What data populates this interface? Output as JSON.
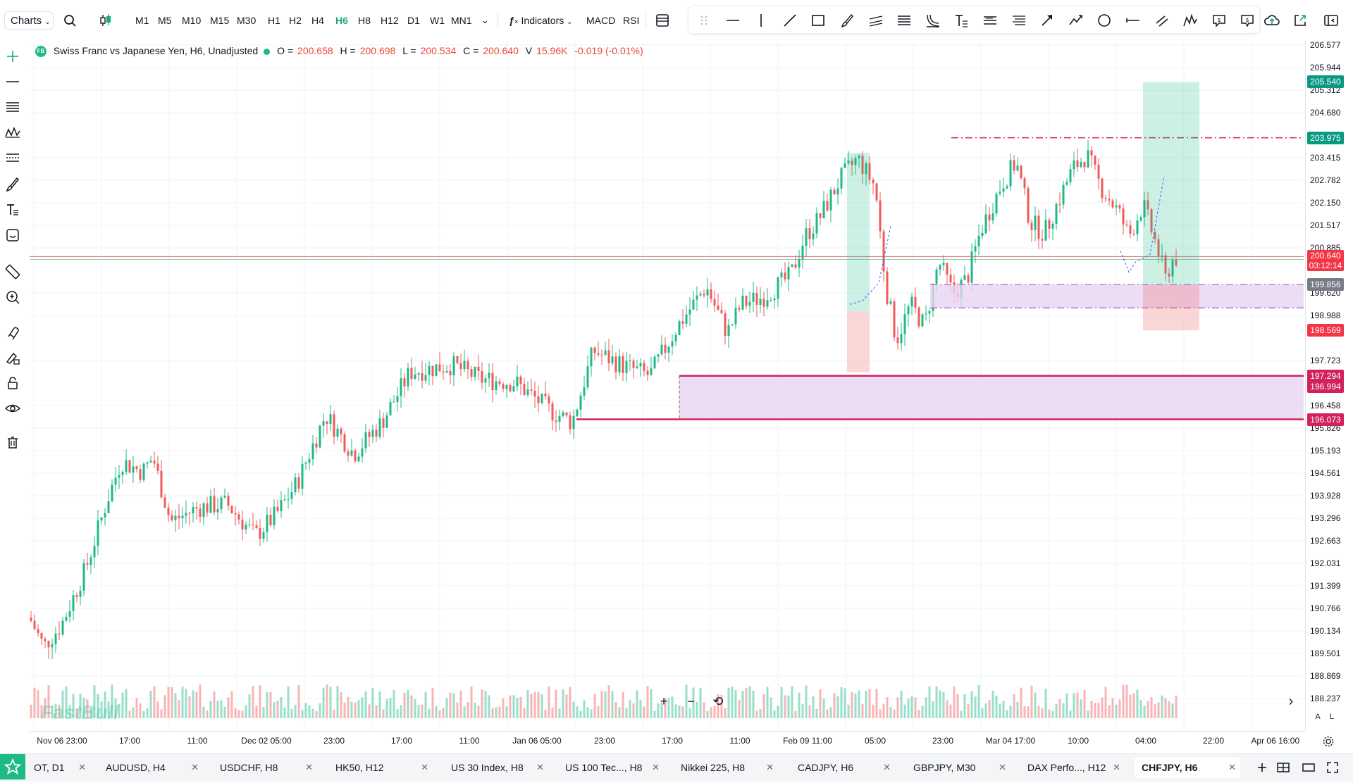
{
  "toolbar": {
    "charts_label": "Charts",
    "timeframes": [
      "M1",
      "M5",
      "M10",
      "M15",
      "M30",
      "H1",
      "H2",
      "H4",
      "H6",
      "H8",
      "H12",
      "D1",
      "W1",
      "MN1"
    ],
    "active_timeframe": "H6",
    "indicators_label": "Indicators",
    "macd_label": "MACD",
    "rsi_label": "RSI"
  },
  "drawing_tools": [
    "drag-handle-icon",
    "horizontal-line-icon",
    "vertical-line-icon",
    "trend-line-icon",
    "rectangle-icon",
    "brush-icon",
    "parallel-channel-icon",
    "fib-retracement-icon",
    "fib-fan-icon",
    "text-tool-icon",
    "pitchfork-icon",
    "gann-icon",
    "arrow-icon",
    "path-icon",
    "circle-icon",
    "ray-icon",
    "parallel-lines-icon",
    "pattern-icon",
    "price-note-icon",
    "price-label-icon"
  ],
  "legend": {
    "badge": "FB",
    "symbol_title": "Swiss Franc vs Japanese Yen, H6, Unadjusted",
    "o_label": "O =",
    "o_value": "200.658",
    "h_label": "H =",
    "h_value": "200.698",
    "l_label": "L =",
    "l_value": "200.534",
    "c_label": "C =",
    "c_value": "200.640",
    "v_label": "V",
    "v_value": "15.96K",
    "change": "-0.019 (-0.01%)"
  },
  "watermark": "FastBull",
  "price_axis": {
    "labels": [
      "206.577",
      "205.944",
      "205.312",
      "204.680",
      "203.415",
      "202.782",
      "202.150",
      "201.517",
      "200.885",
      "199.620",
      "198.988",
      "197.723",
      "196.458",
      "195.826",
      "195.193",
      "194.561",
      "193.928",
      "193.296",
      "192.663",
      "192.031",
      "191.399",
      "190.766",
      "190.134",
      "189.501",
      "188.869",
      "188.237"
    ],
    "tags": [
      {
        "text": "205.540",
        "color": "#089981"
      },
      {
        "text": "203.975",
        "color": "#089981"
      },
      {
        "text": "200.640",
        "sub": "03:12:14",
        "color": "#f23645"
      },
      {
        "text": "199.856",
        "color": "#787b86"
      },
      {
        "text": "198.569",
        "color": "#f23645"
      },
      {
        "text": "197.294",
        "color": "#d1225b"
      },
      {
        "text": "196.994",
        "color": "#d1225b"
      },
      {
        "text": "196.073",
        "color": "#d1225b"
      }
    ],
    "mode_auto": "A",
    "mode_log": "L"
  },
  "time_axis": {
    "labels": [
      "Nov 06 23:00",
      "17:00",
      "11:00",
      "Dec 02 05:00",
      "23:00",
      "17:00",
      "11:00",
      "Jan 06 05:00",
      "23:00",
      "17:00",
      "11:00",
      "Feb 09 11:00",
      "05:00",
      "23:00",
      "Mar 04 17:00",
      "10:00",
      "04:00",
      "22:00",
      "Apr 06 16:00"
    ]
  },
  "tabs": [
    {
      "label": "OT, D1",
      "active": false
    },
    {
      "label": "AUDUSD, H4",
      "active": false
    },
    {
      "label": "USDCHF, H8",
      "active": false
    },
    {
      "label": "HK50, H12",
      "active": false
    },
    {
      "label": "US 30 Index, H8",
      "active": false
    },
    {
      "label": "US 100 Tec..., H8",
      "active": false
    },
    {
      "label": "Nikkei 225, H8",
      "active": false
    },
    {
      "label": "CADJPY, H6",
      "active": false
    },
    {
      "label": "GBPJPY, M30",
      "active": false
    },
    {
      "label": "DAX Perfo..., H12",
      "active": false
    },
    {
      "label": "CHFJPY, H6",
      "active": true
    }
  ],
  "tab_close": "✕",
  "zoom": {
    "plus": "+",
    "minus": "−",
    "reset": "⟲"
  },
  "colors": {
    "up": "#1db987",
    "down": "#f05a5a",
    "accent": "#1aa87f",
    "zone_magenta": "#d1225b",
    "zone_fill": "#e8d4f1"
  }
}
